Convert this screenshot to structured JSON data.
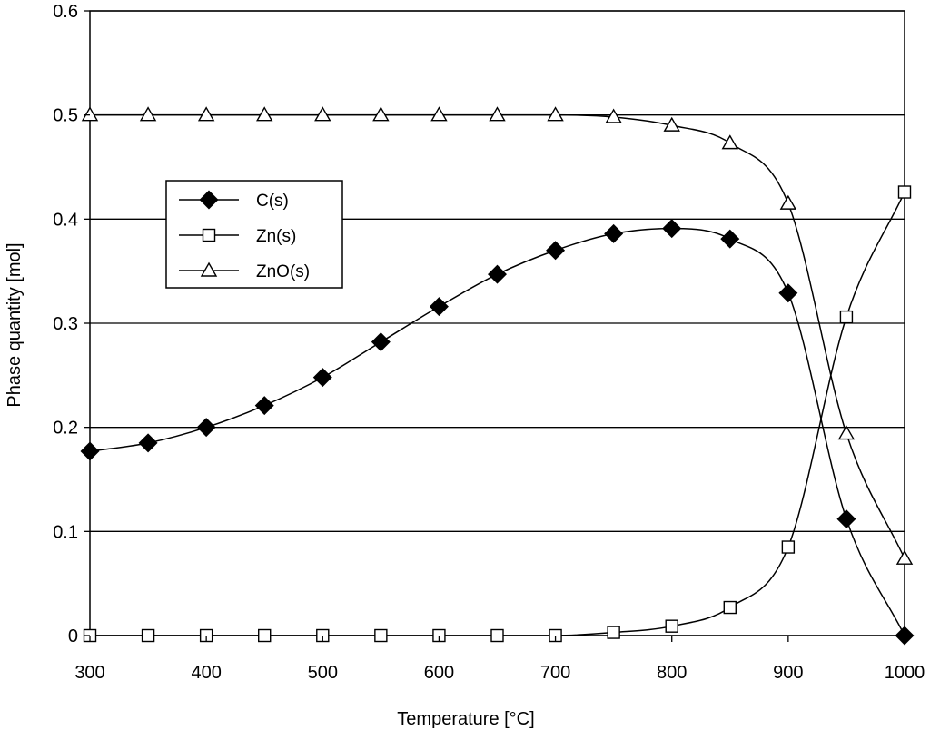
{
  "chart_data": {
    "type": "line",
    "xlabel": "Temperature  [°C]",
    "ylabel": "Phase quantity  [mol]",
    "xlim": [
      300,
      1000
    ],
    "ylim": [
      0,
      0.6
    ],
    "xticks": [
      "300",
      "400",
      "500",
      "600",
      "700",
      "800",
      "900",
      "1000"
    ],
    "yticks": [
      "0",
      "0.1",
      "0.2",
      "0.3",
      "0.4",
      "0.5",
      "0.6"
    ],
    "grid": "horizontal",
    "legend_position": "left",
    "x": [
      300,
      350,
      400,
      450,
      500,
      550,
      600,
      650,
      700,
      750,
      800,
      850,
      900,
      950,
      1000
    ],
    "series": [
      {
        "name": "C(s)",
        "marker": "filled-diamond",
        "values": [
          0.177,
          0.185,
          0.2,
          0.221,
          0.248,
          0.282,
          0.316,
          0.347,
          0.37,
          0.386,
          0.391,
          0.381,
          0.329,
          0.112,
          0.0
        ]
      },
      {
        "name": "Zn(s)",
        "marker": "open-square",
        "values": [
          0.0,
          0.0,
          0.0,
          0.0,
          0.0,
          0.0,
          0.0,
          0.0,
          0.0,
          0.003,
          0.009,
          0.027,
          0.085,
          0.306,
          0.426
        ]
      },
      {
        "name": "ZnO(s)",
        "marker": "open-triangle",
        "values": [
          0.5,
          0.5,
          0.5,
          0.5,
          0.5,
          0.5,
          0.5,
          0.5,
          0.5,
          0.498,
          0.49,
          0.473,
          0.415,
          0.194,
          0.074
        ]
      }
    ],
    "colors": {
      "line": "#000000",
      "grid": "#000000",
      "marker_fill_open": "#ffffff",
      "marker_fill_solid": "#000000"
    }
  }
}
